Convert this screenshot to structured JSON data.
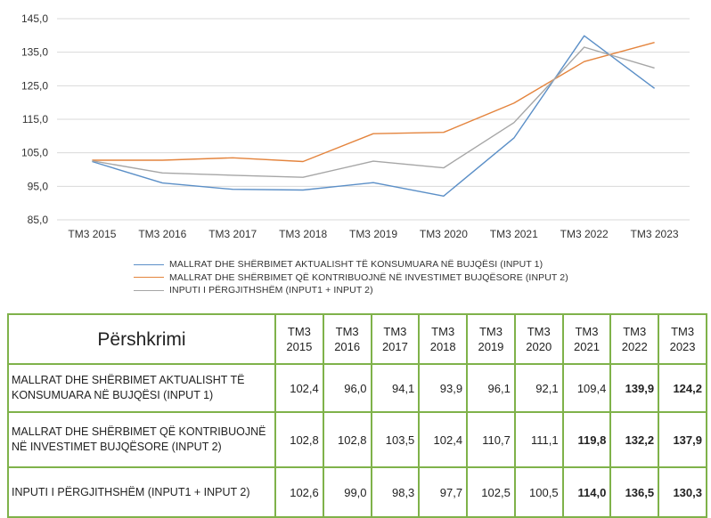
{
  "chart_data": {
    "type": "line",
    "categories": [
      "TM3 2015",
      "TM3 2016",
      "TM3 2017",
      "TM3 2018",
      "TM3 2019",
      "TM3 2020",
      "TM3 2021",
      "TM3 2022",
      "TM3 2023"
    ],
    "series": [
      {
        "name": "MALLRAT DHE SHËRBIMET AKTUALISHT TË KONSUMUARA NË BUJQËSI (INPUT 1)",
        "color": "#5b8fc7",
        "values": [
          102.4,
          96.0,
          94.1,
          93.9,
          96.1,
          92.1,
          109.4,
          139.9,
          124.2
        ]
      },
      {
        "name": "MALLRAT DHE SHËRBIMET QË KONTRIBUOJNË NË INVESTIMET BUJQËSORE (INPUT 2)",
        "color": "#e4843d",
        "values": [
          102.8,
          102.8,
          103.5,
          102.4,
          110.7,
          111.1,
          119.8,
          132.2,
          137.9
        ]
      },
      {
        "name": "INPUTI I PËRGJITHSHËM    (INPUT1 + INPUT 2)",
        "color": "#a6a6a6",
        "values": [
          102.6,
          99.0,
          98.3,
          97.7,
          102.5,
          100.5,
          114.0,
          136.5,
          130.3
        ]
      }
    ],
    "yticks": [
      "145,0",
      "135,0",
      "125,0",
      "115,0",
      "105,0",
      "95,0",
      "85,0"
    ],
    "ylim": [
      85,
      145
    ],
    "grid": true,
    "legend_placement": "bottom"
  },
  "table": {
    "header_desc": "Përshkrimi",
    "year_headers": [
      {
        "line1": "TM3",
        "line2": "2015"
      },
      {
        "line1": "TM3",
        "line2": "2016"
      },
      {
        "line1": "TM3",
        "line2": "2017"
      },
      {
        "line1": "TM3",
        "line2": "2018"
      },
      {
        "line1": "TM3",
        "line2": "2019"
      },
      {
        "line1": "TM3",
        "line2": "2020"
      },
      {
        "line1": "TM3",
        "line2": "2021"
      },
      {
        "line1": "TM3",
        "line2": "2022"
      },
      {
        "line1": "TM3",
        "line2": "2023"
      }
    ],
    "rows": [
      {
        "desc": "MALLRAT DHE SHËRBIMET AKTUALISHT TË KONSUMUARA NË BUJQËSI (INPUT 1)",
        "values": [
          "102,4",
          "96,0",
          "94,1",
          "93,9",
          "96,1",
          "92,1",
          "109,4",
          "139,9",
          "124,2"
        ]
      },
      {
        "desc": "MALLRAT DHE SHËRBIMET QË KONTRIBUOJNË NË INVESTIMET BUJQËSORE (INPUT 2)",
        "values": [
          "102,8",
          "102,8",
          "103,5",
          "102,4",
          "110,7",
          "111,1",
          "119,8",
          "132,2",
          "137,9"
        ]
      },
      {
        "desc": "INPUTI I PËRGJITHSHËM   (INPUT1 + INPUT 2)",
        "values": [
          "102,6",
          "99,0",
          "98,3",
          "97,7",
          "102,5",
          "100,5",
          "114,0",
          "136,5",
          "130,3"
        ]
      }
    ]
  }
}
